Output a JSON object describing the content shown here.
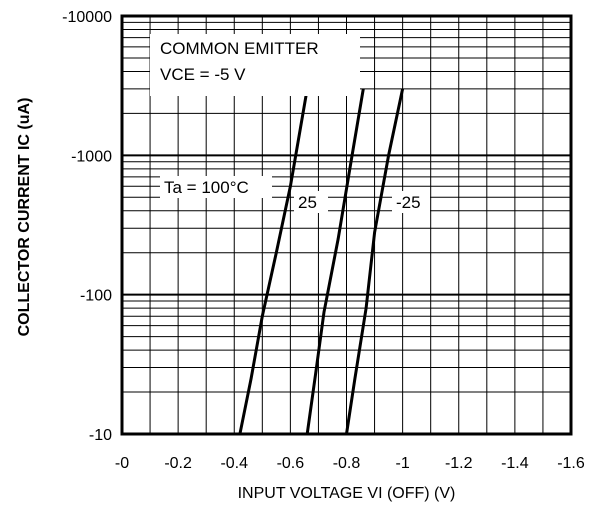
{
  "chart_data": {
    "type": "line",
    "xlabel": "INPUT VOLTAGE   VI (OFF) (V)",
    "ylabel": "COLLECTOR CURRENT  IC (uA)",
    "x_ticks": [
      "-0",
      "-0.2",
      "-0.4",
      "-0.6",
      "-0.8",
      "-1",
      "-1.2",
      "-1.4",
      "-1.6"
    ],
    "y_ticks": [
      "-10000",
      "-1000",
      "-100",
      "-10"
    ],
    "xlim": [
      0,
      -1.6
    ],
    "ylim": [
      -10,
      -10000
    ],
    "y_scale": "log",
    "grid": true,
    "annotations": {
      "mode": "COMMON EMITTER",
      "condition": "VCE = -5 V"
    },
    "series": [
      {
        "name": "Ta = 100°C",
        "x": [
          -0.42,
          -0.46,
          -0.5,
          -0.55,
          -0.6,
          -0.66
        ],
        "y": [
          -10,
          -25,
          -70,
          -200,
          -600,
          -3000
        ]
      },
      {
        "name": "25",
        "x": [
          -0.66,
          -0.69,
          -0.72,
          -0.77,
          -0.82,
          -0.86
        ],
        "y": [
          -10,
          -27,
          -75,
          -250,
          -1000,
          -3000
        ]
      },
      {
        "name": "-25",
        "x": [
          -0.8,
          -0.83,
          -0.87,
          -0.9,
          -0.95,
          -1.0
        ],
        "y": [
          -10,
          -25,
          -80,
          -280,
          -1000,
          -3000
        ]
      }
    ]
  }
}
